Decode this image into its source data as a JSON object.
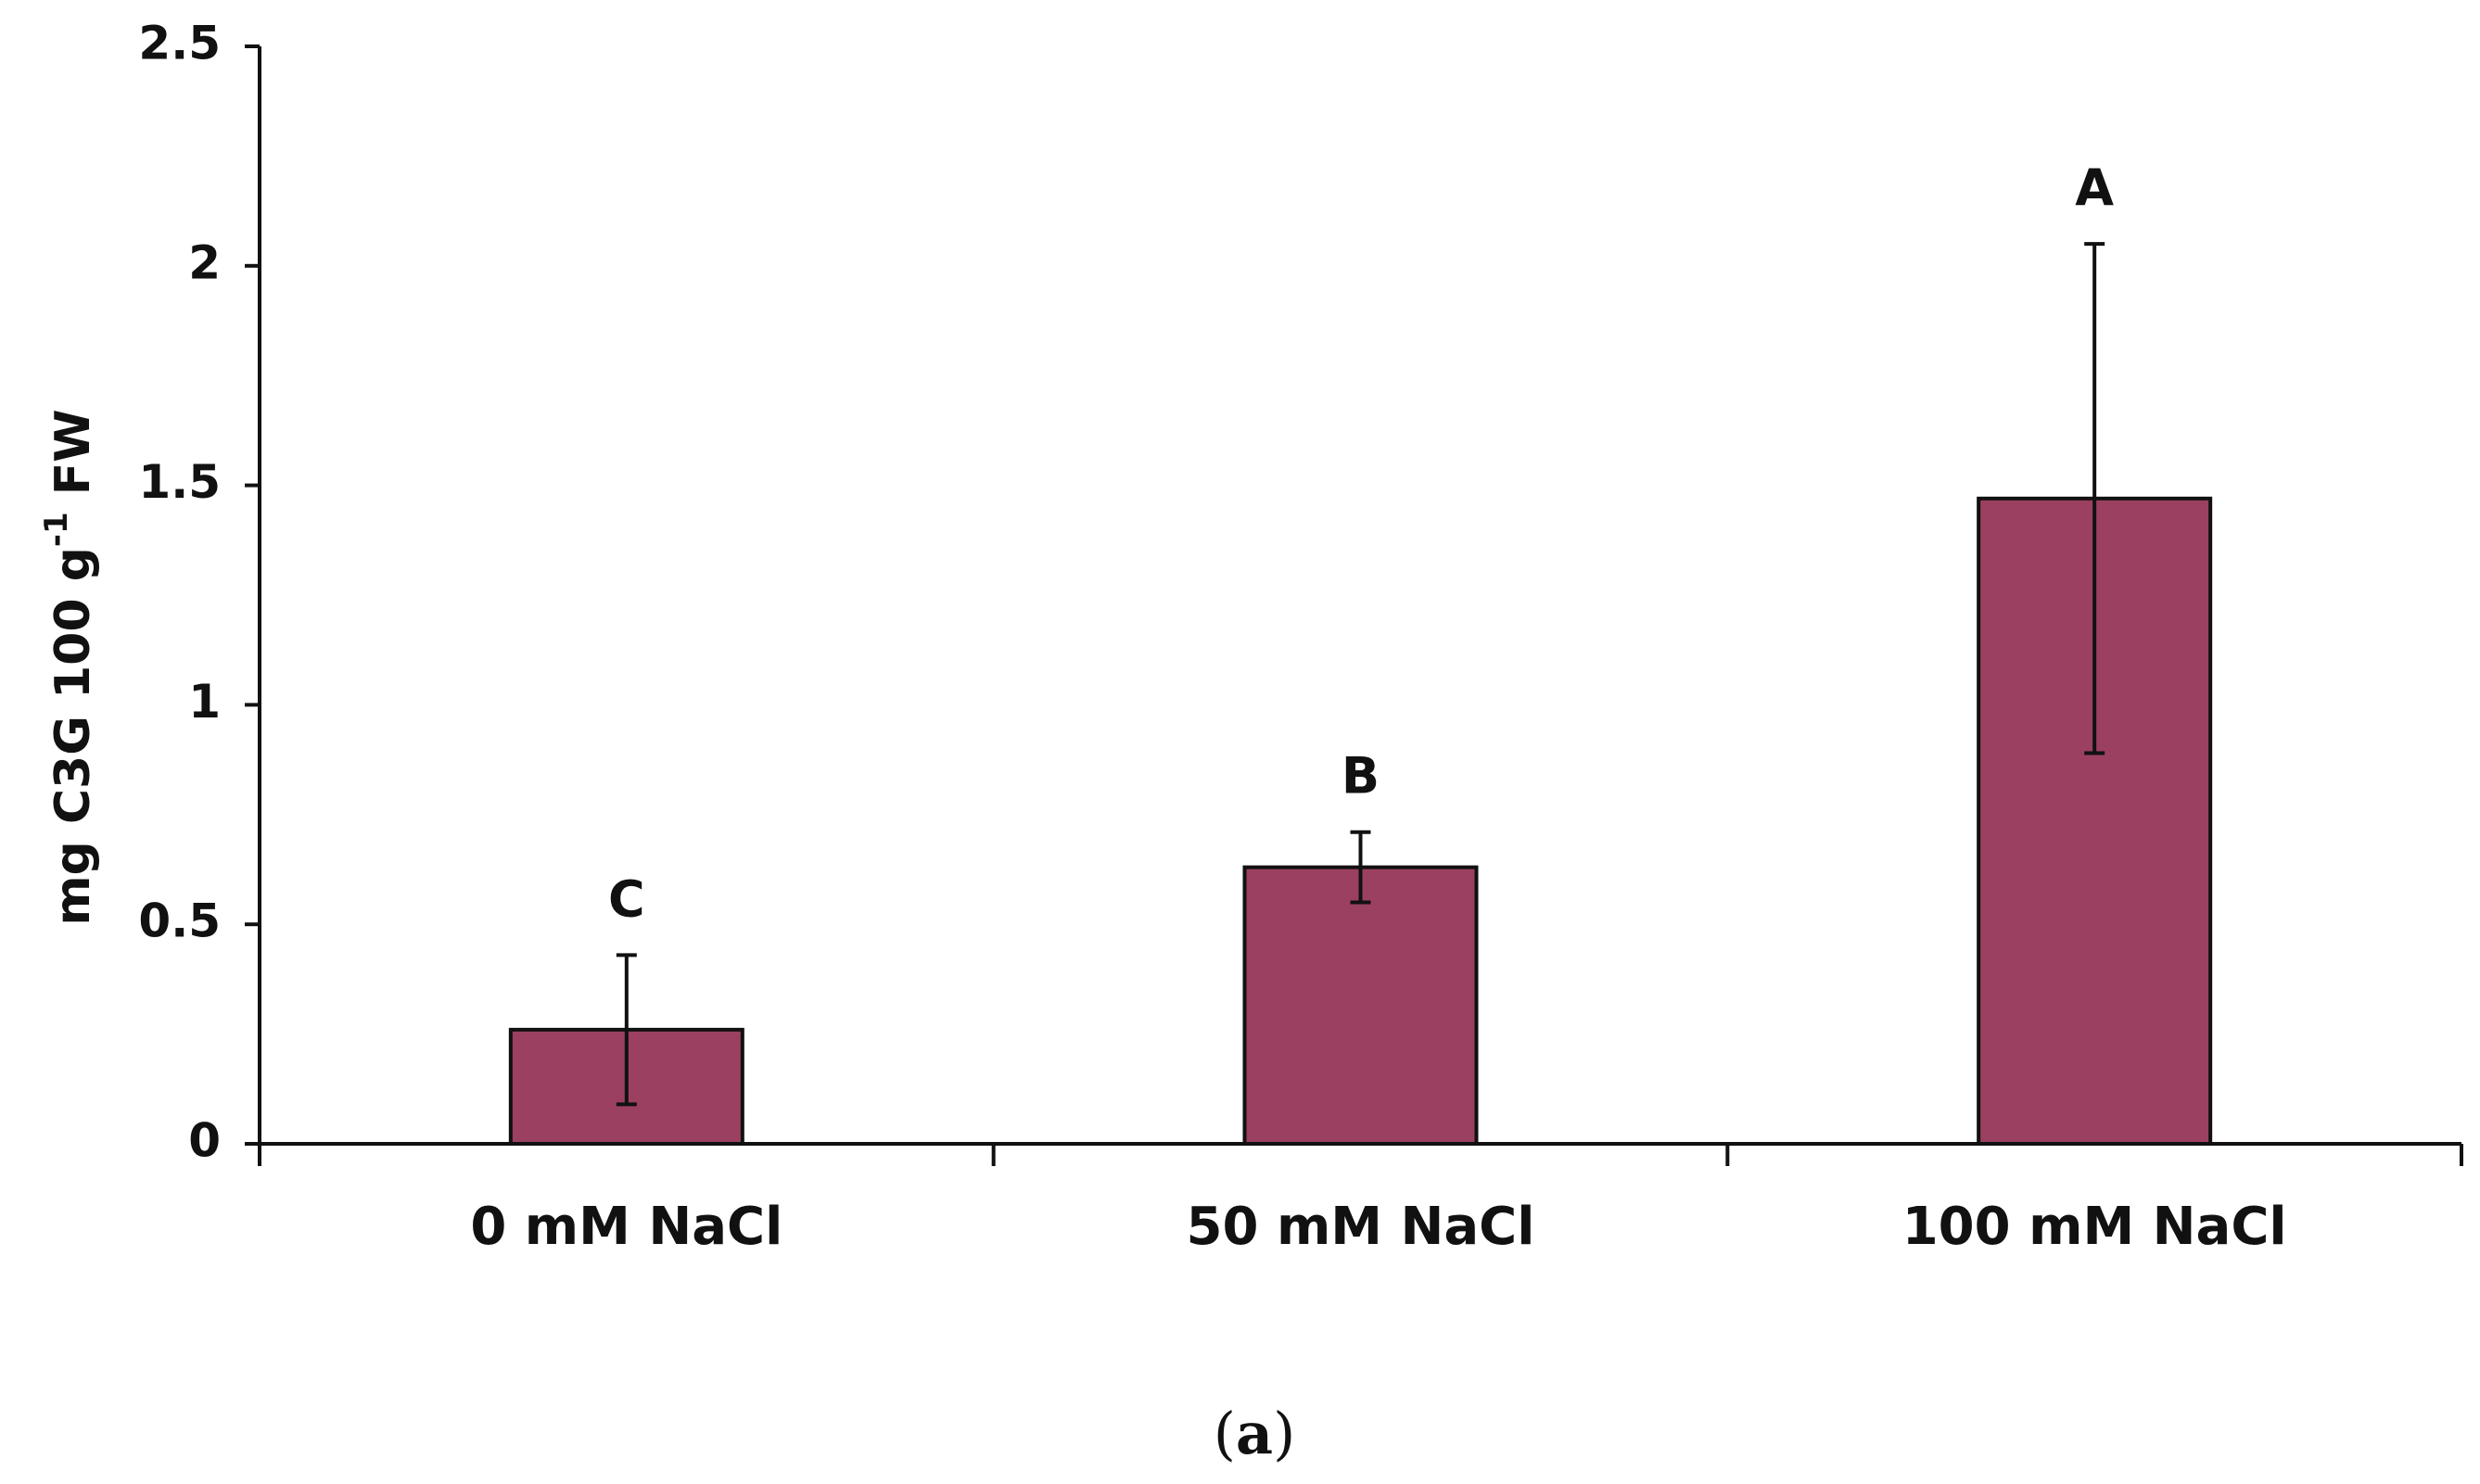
{
  "chart_data": {
    "type": "bar",
    "title": "",
    "xlabel": "",
    "ylabel": {
      "prefix": "mg C3G 100 g",
      "superscript": "-1",
      "suffix": " FW"
    },
    "categories": [
      "0 mM NaCl",
      "50 mM NaCl",
      "100 mM NaCl"
    ],
    "values": [
      0.26,
      0.63,
      1.47
    ],
    "errors": [
      0.17,
      0.08,
      0.58
    ],
    "significance_letters": [
      "C",
      "B",
      "A"
    ],
    "ylim": [
      0,
      2.5
    ],
    "yticks": [
      0,
      0.5,
      1,
      1.5,
      2,
      2.5
    ],
    "ytick_labels": [
      "0",
      "0.5",
      "1",
      "1.5",
      "2",
      "2.5"
    ],
    "grid": false,
    "legend": "none",
    "colors": {
      "bar_fill": "#9b4061",
      "bar_stroke": "#111111",
      "axis": "#111111"
    }
  },
  "panel_label": {
    "open": "(",
    "letter": "a",
    "close": ")"
  }
}
